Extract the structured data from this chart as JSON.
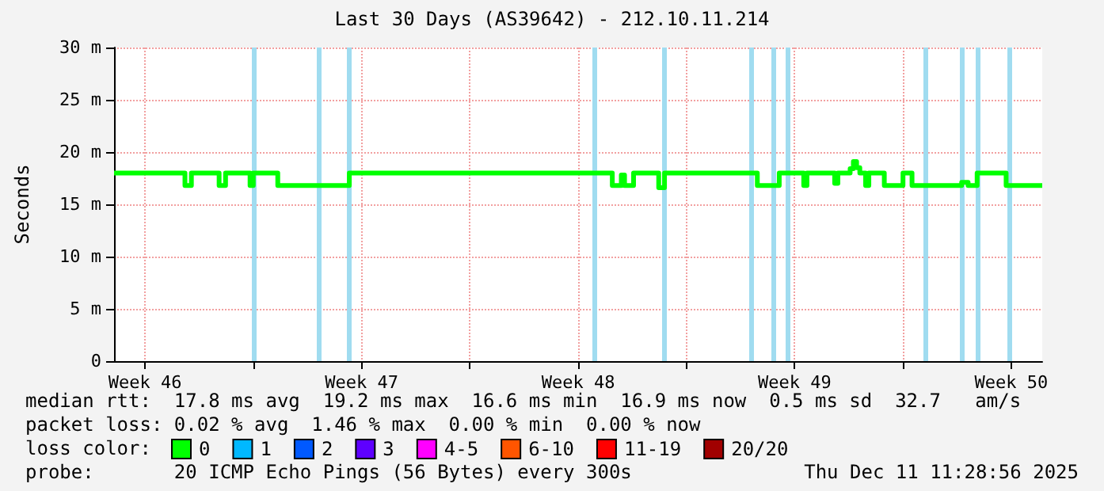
{
  "chart_data": {
    "type": "step",
    "title": "Last 30 Days (AS39642) - 212.10.11.214",
    "ylabel": "Seconds",
    "x": [
      "2025-11-11T12:00",
      "2025-11-13T19:00",
      "2025-11-14T00:00",
      "2025-11-14T21:30",
      "2025-11-15T02:30",
      "2025-11-15T21:30",
      "2025-11-16T00:00",
      "2025-11-16T19:00",
      "2025-11-19T02:30",
      "2025-11-27T14:30",
      "2025-11-27T21:30",
      "2025-11-28T00:00",
      "2025-11-28T07:00",
      "2025-11-29T02:30",
      "2025-11-29T07:00",
      "2025-12-02T07:00",
      "2025-12-03T00:00",
      "2025-12-03T19:00",
      "2025-12-03T21:30",
      "2025-12-04T19:00",
      "2025-12-04T21:30",
      "2025-12-05T07:00",
      "2025-12-05T09:30",
      "2025-12-05T12:00",
      "2025-12-05T14:30",
      "2025-12-05T19:00",
      "2025-12-05T21:30",
      "2025-12-06T09:30",
      "2025-12-07T00:00",
      "2025-12-07T07:00",
      "2025-12-08T21:30",
      "2025-12-09T02:30",
      "2025-12-09T09:30",
      "2025-12-10T08:00",
      "2025-12-11T12:00"
    ],
    "series": [
      {
        "name": "0",
        "color": "#00ff00",
        "values": [
          18.0,
          16.8,
          18.0,
          16.8,
          18.0,
          16.8,
          18.0,
          16.8,
          18.0,
          16.8,
          17.8,
          16.8,
          18.0,
          16.6,
          18.0,
          16.8,
          18.0,
          16.8,
          18.0,
          17.0,
          18.0,
          18.4,
          19.1,
          18.5,
          18.0,
          16.8,
          18.0,
          16.8,
          18.0,
          16.8,
          17.1,
          16.8,
          18.0,
          16.8,
          16.8
        ]
      },
      {
        "name": "1",
        "color": "#00b8ff",
        "values": [
          null,
          null,
          null,
          null,
          null,
          null,
          null,
          null,
          null,
          null,
          null,
          null,
          null,
          null,
          null,
          null,
          null,
          null,
          null,
          null,
          null,
          null,
          null,
          null,
          null,
          null,
          null,
          null,
          null,
          null,
          null,
          null,
          null,
          null,
          null
        ]
      },
      {
        "name": "2",
        "color": "#0059ff",
        "values": [
          null,
          null,
          null,
          null,
          null,
          null,
          null,
          null,
          null,
          null,
          null,
          null,
          null,
          null,
          null,
          null,
          null,
          null,
          null,
          null,
          null,
          null,
          null,
          null,
          null,
          null,
          null,
          null,
          null,
          null,
          null,
          null,
          null,
          null,
          null
        ]
      },
      {
        "name": "3",
        "color": "#5e00ff",
        "values": [
          null,
          null,
          null,
          null,
          null,
          null,
          null,
          null,
          null,
          null,
          null,
          null,
          null,
          null,
          null,
          null,
          null,
          null,
          null,
          null,
          null,
          null,
          null,
          null,
          null,
          null,
          null,
          null,
          null,
          null,
          null,
          null,
          null,
          null,
          null
        ]
      },
      {
        "name": "4-5",
        "color": "#ff00ff",
        "values": [
          null,
          null,
          null,
          null,
          null,
          null,
          null,
          null,
          null,
          null,
          null,
          null,
          null,
          null,
          null,
          null,
          null,
          null,
          null,
          null,
          null,
          null,
          null,
          null,
          null,
          null,
          null,
          null,
          null,
          null,
          null,
          null,
          null,
          null,
          null
        ]
      },
      {
        "name": "6-10",
        "color": "#ff5500",
        "values": [
          null,
          null,
          null,
          null,
          null,
          null,
          null,
          null,
          null,
          null,
          null,
          null,
          null,
          null,
          null,
          null,
          null,
          null,
          null,
          null,
          null,
          null,
          null,
          null,
          null,
          null,
          null,
          null,
          null,
          null,
          null,
          null,
          null,
          null,
          null
        ]
      },
      {
        "name": "11-19",
        "color": "#ff0000",
        "values": [
          null,
          null,
          null,
          null,
          null,
          null,
          null,
          null,
          null,
          null,
          null,
          null,
          null,
          null,
          null,
          null,
          null,
          null,
          null,
          null,
          null,
          null,
          null,
          null,
          null,
          null,
          null,
          null,
          null,
          null,
          null,
          null,
          null,
          null,
          null
        ]
      },
      {
        "name": "20/20",
        "color": "#a10000",
        "values": [
          null,
          null,
          null,
          null,
          null,
          null,
          null,
          null,
          null,
          null,
          null,
          null,
          null,
          null,
          null,
          null,
          null,
          null,
          null,
          null,
          null,
          null,
          null,
          null,
          null,
          null,
          null,
          null,
          null,
          null,
          null,
          null,
          null,
          null,
          null
        ]
      }
    ],
    "legend_title": "loss color:",
    "legend": "bottom",
    "xlim": [
      "2025-11-11T12:00",
      "2025-12-11T12:00"
    ],
    "xticks": [
      {
        "value": "2025-11-12T12:00",
        "label": "Week 46"
      },
      {
        "value": "2025-11-16T00:00",
        "label": null
      },
      {
        "value": "2025-11-19T12:00",
        "label": "Week 47"
      },
      {
        "value": "2025-11-23T00:00",
        "label": null
      },
      {
        "value": "2025-11-26T12:00",
        "label": "Week 48"
      },
      {
        "value": "2025-11-30T00:00",
        "label": null
      },
      {
        "value": "2025-12-03T12:00",
        "label": "Week 49"
      },
      {
        "value": "2025-12-07T00:00",
        "label": null
      },
      {
        "value": "2025-12-10T12:00",
        "label": "Week 50"
      }
    ],
    "ylim": [
      0,
      30
    ],
    "yticks": [
      0,
      {
        "value": 5,
        "label": "5 m"
      },
      {
        "value": 10,
        "label": "10 m"
      },
      {
        "value": 15,
        "label": "15 m"
      },
      {
        "value": 20,
        "label": "20 m"
      },
      {
        "value": 25,
        "label": "25 m"
      },
      {
        "value": 30,
        "label": "30 m"
      }
    ],
    "grid": true,
    "line_style": "solid",
    "marker": "none",
    "ref_lines": [
      {
        "axis": "x",
        "value": "2025-11-16T00:00",
        "color": "#a0dcf0"
      },
      {
        "axis": "x",
        "value": "2025-11-18T02:30",
        "color": "#a0dcf0"
      },
      {
        "axis": "x",
        "value": "2025-11-19T02:30",
        "color": "#a0dcf0"
      },
      {
        "axis": "x",
        "value": "2025-11-27T00:00",
        "color": "#a0dcf0"
      },
      {
        "axis": "x",
        "value": "2025-11-29T07:00",
        "color": "#a0dcf0"
      },
      {
        "axis": "x",
        "value": "2025-12-02T02:30",
        "color": "#a0dcf0"
      },
      {
        "axis": "x",
        "value": "2025-12-02T19:00",
        "color": "#a0dcf0"
      },
      {
        "axis": "x",
        "value": "2025-12-03T07:00",
        "color": "#a0dcf0"
      },
      {
        "axis": "x",
        "value": "2025-12-07T17:00",
        "color": "#a0dcf0"
      },
      {
        "axis": "x",
        "value": "2025-12-08T21:30",
        "color": "#a0dcf0"
      },
      {
        "axis": "x",
        "value": "2025-12-09T09:30",
        "color": "#a0dcf0"
      },
      {
        "axis": "x",
        "value": "2025-12-10T11:00",
        "color": "#a0dcf0"
      }
    ],
    "annotations": [
      "median rtt:  17.8 ms avg  19.2 ms max  16.6 ms min  16.9 ms now  0.5 ms sd  32.7   am/s",
      "packet loss: 0.02 % avg  1.46 % max  0.00 % min  0.00 % now",
      "probe:       20 ICMP Echo Pings (56 Bytes) every 300s",
      "Thu Dec 11 11:28:56 2025"
    ]
  }
}
